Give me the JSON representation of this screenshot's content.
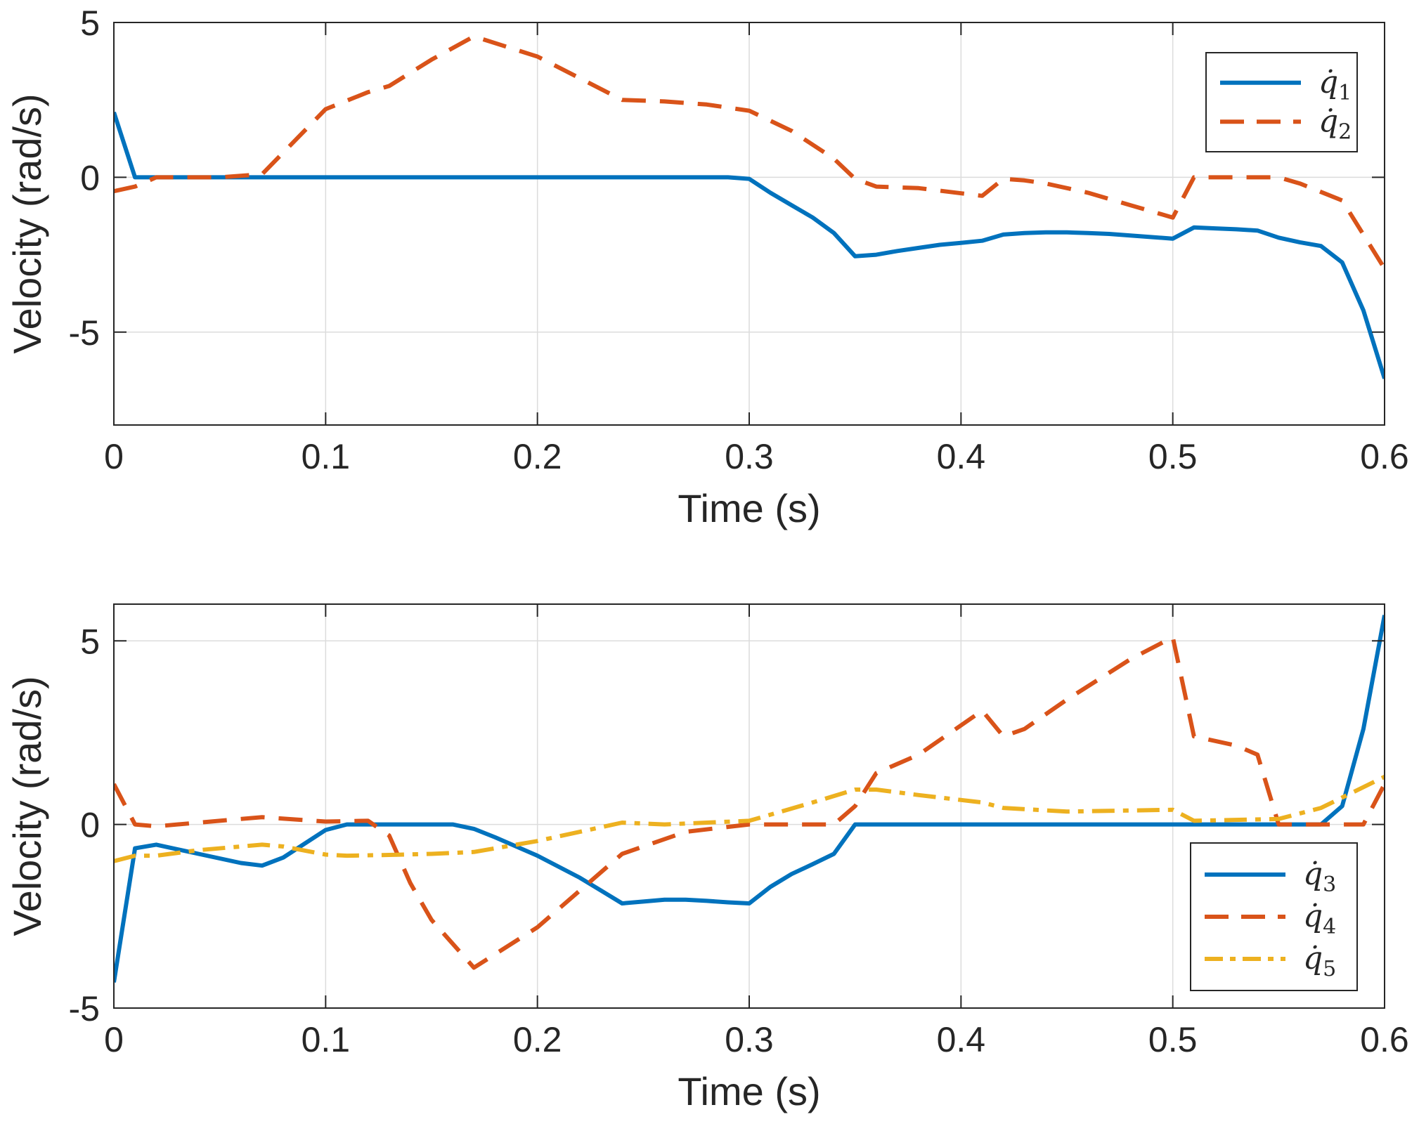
{
  "chart_data": [
    {
      "type": "line",
      "xlabel": "Time (s)",
      "ylabel": "Velocity (rad/s)",
      "xlim": [
        0,
        0.6
      ],
      "ylim": [
        -8,
        5
      ],
      "xticks": [
        0,
        0.1,
        0.2,
        0.3,
        0.4,
        0.5,
        0.6
      ],
      "xtick_labels": [
        "0",
        "0.1",
        "0.2",
        "0.3",
        "0.4",
        "0.5",
        "0.6"
      ],
      "yticks": [
        -5,
        0,
        5
      ],
      "ytick_labels": [
        "-5",
        "0",
        "5"
      ],
      "grid": true,
      "legend_position": "top-right",
      "series": [
        {
          "name": "q̇1",
          "legend_main": "q̇",
          "legend_sub": "1",
          "style": "solid",
          "color": "#0072BD",
          "x": [
            0,
            0.01,
            0.02,
            0.05,
            0.1,
            0.15,
            0.2,
            0.25,
            0.29,
            0.3,
            0.31,
            0.32,
            0.33,
            0.34,
            0.35,
            0.36,
            0.37,
            0.38,
            0.39,
            0.4,
            0.41,
            0.42,
            0.43,
            0.44,
            0.45,
            0.46,
            0.47,
            0.48,
            0.49,
            0.5,
            0.51,
            0.52,
            0.53,
            0.54,
            0.55,
            0.56,
            0.57,
            0.58,
            0.59,
            0.6
          ],
          "y": [
            2.1,
            0,
            0,
            0,
            0,
            0,
            0,
            0,
            0,
            -0.05,
            -0.5,
            -0.9,
            -1.3,
            -1.8,
            -2.55,
            -2.5,
            -2.38,
            -2.28,
            -2.18,
            -2.12,
            -2.05,
            -1.85,
            -1.8,
            -1.78,
            -1.78,
            -1.8,
            -1.83,
            -1.88,
            -1.93,
            -1.98,
            -1.62,
            -1.65,
            -1.68,
            -1.72,
            -1.95,
            -2.1,
            -2.22,
            -2.75,
            -4.3,
            -6.5
          ]
        },
        {
          "name": "q̇2",
          "legend_main": "q̇",
          "legend_sub": "2",
          "style": "dashed",
          "color": "#D95319",
          "x": [
            0,
            0.01,
            0.02,
            0.05,
            0.07,
            0.08,
            0.1,
            0.12,
            0.13,
            0.15,
            0.17,
            0.2,
            0.22,
            0.24,
            0.26,
            0.28,
            0.3,
            0.32,
            0.34,
            0.35,
            0.36,
            0.38,
            0.41,
            0.42,
            0.43,
            0.44,
            0.46,
            0.48,
            0.5,
            0.51,
            0.53,
            0.54,
            0.55,
            0.56,
            0.58,
            0.6
          ],
          "y": [
            -0.45,
            -0.3,
            0,
            0,
            0.1,
            0.8,
            2.2,
            2.75,
            2.95,
            3.8,
            4.55,
            3.9,
            3.2,
            2.5,
            2.45,
            2.35,
            2.15,
            1.5,
            0.6,
            -0.05,
            -0.3,
            -0.35,
            -0.6,
            -0.05,
            -0.1,
            -0.2,
            -0.5,
            -0.9,
            -1.3,
            0,
            0,
            0,
            0,
            -0.2,
            -0.75,
            -2.95
          ]
        }
      ]
    },
    {
      "type": "line",
      "xlabel": "Time (s)",
      "ylabel": "Velocity (rad/s)",
      "xlim": [
        0,
        0.6
      ],
      "ylim": [
        -5,
        6
      ],
      "xticks": [
        0,
        0.1,
        0.2,
        0.3,
        0.4,
        0.5,
        0.6
      ],
      "xtick_labels": [
        "0",
        "0.1",
        "0.2",
        "0.3",
        "0.4",
        "0.5",
        "0.6"
      ],
      "yticks": [
        -5,
        0,
        5
      ],
      "ytick_labels": [
        "-5",
        "0",
        "5"
      ],
      "grid": true,
      "legend_position": "bottom-right",
      "series": [
        {
          "name": "q̇3",
          "legend_main": "q̇",
          "legend_sub": "3",
          "style": "solid",
          "color": "#0072BD",
          "x": [
            0,
            0.01,
            0.02,
            0.04,
            0.06,
            0.07,
            0.08,
            0.1,
            0.11,
            0.12,
            0.14,
            0.16,
            0.17,
            0.18,
            0.2,
            0.22,
            0.23,
            0.24,
            0.25,
            0.26,
            0.27,
            0.28,
            0.29,
            0.3,
            0.31,
            0.32,
            0.33,
            0.34,
            0.35,
            0.4,
            0.45,
            0.5,
            0.55,
            0.57,
            0.58,
            0.59,
            0.6
          ],
          "y": [
            -4.3,
            -0.65,
            -0.55,
            -0.8,
            -1.05,
            -1.12,
            -0.9,
            -0.15,
            0,
            0,
            0,
            0,
            -0.12,
            -0.35,
            -0.85,
            -1.45,
            -1.8,
            -2.15,
            -2.1,
            -2.05,
            -2.05,
            -2.08,
            -2.12,
            -2.15,
            -1.7,
            -1.35,
            -1.08,
            -0.8,
            0,
            0,
            0,
            0,
            0,
            0,
            0.5,
            2.6,
            5.7
          ]
        },
        {
          "name": "q̇4",
          "legend_main": "q̇",
          "legend_sub": "4",
          "style": "dashed",
          "color": "#D95319",
          "x": [
            0,
            0.01,
            0.02,
            0.04,
            0.07,
            0.1,
            0.12,
            0.13,
            0.14,
            0.15,
            0.17,
            0.2,
            0.24,
            0.27,
            0.3,
            0.31,
            0.34,
            0.35,
            0.36,
            0.38,
            0.41,
            0.42,
            0.43,
            0.45,
            0.48,
            0.5,
            0.51,
            0.53,
            0.54,
            0.55,
            0.58,
            0.59,
            0.6
          ],
          "y": [
            1.1,
            0,
            -0.05,
            0.05,
            0.2,
            0.08,
            0.1,
            -0.3,
            -1.6,
            -2.6,
            -3.9,
            -2.8,
            -0.8,
            -0.2,
            0,
            0,
            0,
            0.5,
            1.4,
            1.9,
            3.1,
            2.4,
            2.6,
            3.4,
            4.5,
            5.1,
            2.4,
            2.15,
            1.9,
            0,
            0,
            0,
            1.1
          ]
        },
        {
          "name": "q̇5",
          "legend_main": "q̇",
          "legend_sub": "5",
          "style": "dashdot",
          "color": "#EDB120",
          "x": [
            0,
            0.01,
            0.02,
            0.04,
            0.07,
            0.08,
            0.1,
            0.11,
            0.13,
            0.15,
            0.17,
            0.2,
            0.24,
            0.26,
            0.3,
            0.33,
            0.35,
            0.36,
            0.38,
            0.41,
            0.42,
            0.45,
            0.5,
            0.51,
            0.55,
            0.57,
            0.6
          ],
          "y": [
            -1.0,
            -0.85,
            -0.85,
            -0.7,
            -0.55,
            -0.6,
            -0.82,
            -0.85,
            -0.83,
            -0.8,
            -0.75,
            -0.45,
            0.05,
            0,
            0.1,
            0.6,
            0.95,
            0.95,
            0.8,
            0.6,
            0.45,
            0.35,
            0.4,
            0.1,
            0.15,
            0.45,
            1.3
          ]
        }
      ]
    }
  ]
}
